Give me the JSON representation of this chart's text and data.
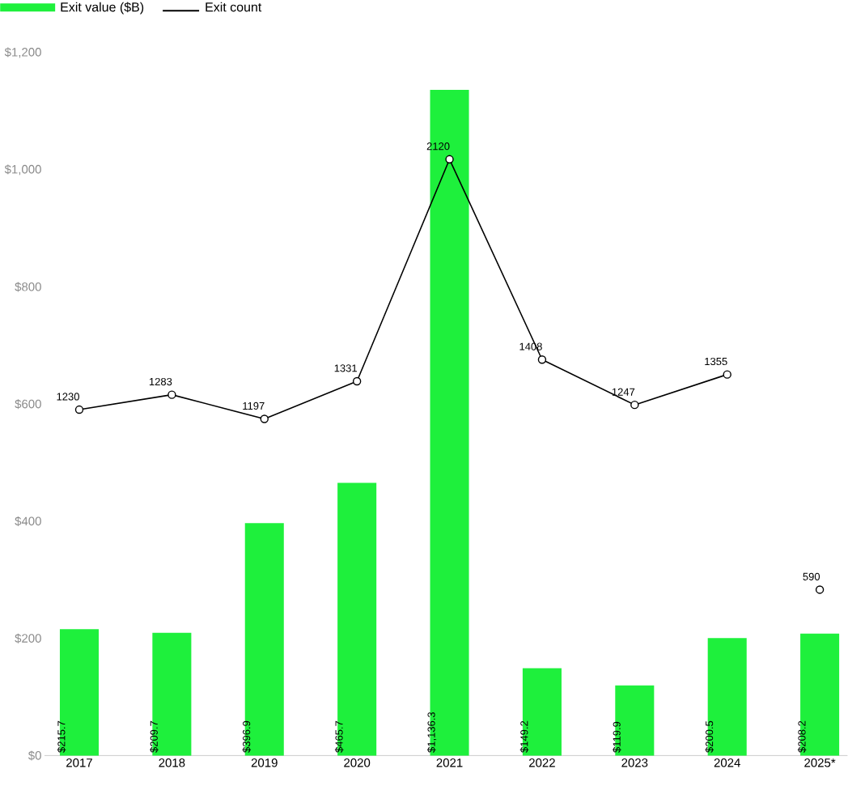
{
  "chart_data": {
    "type": "bar",
    "categories": [
      "2017",
      "2018",
      "2019",
      "2020",
      "2021",
      "2022",
      "2023",
      "2024",
      "2025*"
    ],
    "series": [
      {
        "name": "Exit value ($B)",
        "color": "#1ef03c",
        "values": [
          215.7,
          209.7,
          396.9,
          465.7,
          1136.3,
          149.2,
          119.9,
          200.5,
          208.2
        ],
        "value_labels": [
          "$215.7",
          "$209.7",
          "$396.9",
          "$465.7",
          "$1,136.3",
          "$149.2",
          "$119.9",
          "$200.5",
          "$208.2"
        ]
      },
      {
        "name": "Exit count",
        "type": "line",
        "axis": "y2",
        "color": "#000000",
        "marker": "circle",
        "line_style": "solid",
        "values": [
          1230,
          1283,
          1197,
          1331,
          2120,
          1408,
          1247,
          1355,
          null
        ],
        "value_labels": [
          "1230",
          "1283",
          "1197",
          "1331",
          "2120",
          "1408",
          "1247",
          "1355",
          null
        ]
      },
      {
        "type": "scatter",
        "axis": "y2",
        "color": "#000000",
        "marker": "circle",
        "values": [
          null,
          null,
          null,
          null,
          null,
          null,
          null,
          null,
          590
        ],
        "value_labels": [
          null,
          null,
          null,
          null,
          null,
          null,
          null,
          null,
          "590"
        ]
      }
    ],
    "ylim": [
      0,
      1200
    ],
    "yticks": [
      {
        "value": 0,
        "label": "$0"
      },
      {
        "value": 200,
        "label": "$200"
      },
      {
        "value": 400,
        "label": "$400"
      },
      {
        "value": 600,
        "label": "$600"
      },
      {
        "value": 800,
        "label": "$800"
      },
      {
        "value": 1000,
        "label": "$1,000"
      },
      {
        "value": 1200,
        "label": "$1,200"
      }
    ],
    "legend": "top left",
    "grid": false
  }
}
